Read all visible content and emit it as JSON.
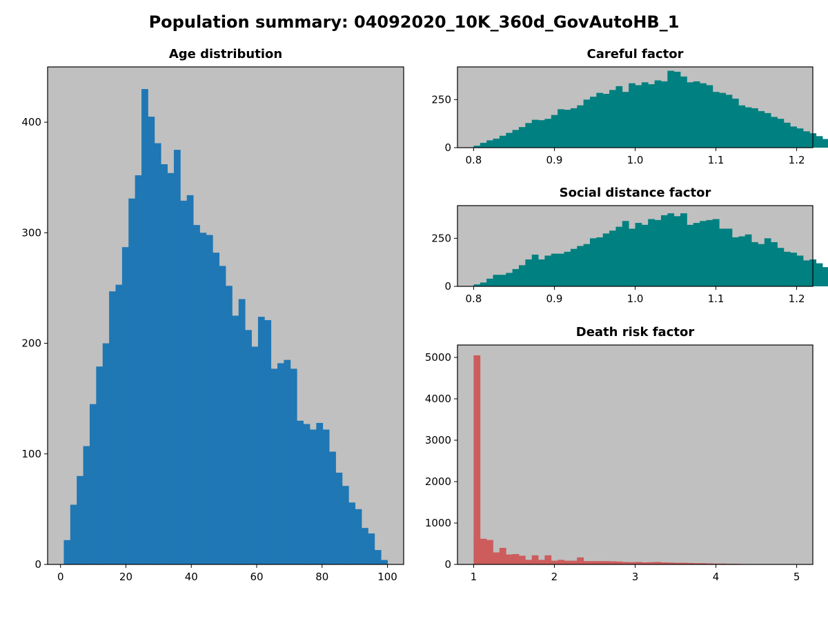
{
  "figure": {
    "title": "Population summary: 04092020_10K_360d_GovAutoHB_1",
    "background": "#ffffff",
    "axes_facecolor": "#c0c0c0"
  },
  "chart_data": [
    {
      "type": "bar",
      "histogram": true,
      "title": "Age distribution",
      "xlabel": "",
      "ylabel": "",
      "color": "#1f77b4",
      "bin_start": 1.0,
      "bin_width": 1.98,
      "values": [
        22,
        54,
        80,
        107,
        145,
        179,
        200,
        247,
        253,
        287,
        331,
        352,
        430,
        405,
        381,
        362,
        354,
        375,
        329,
        334,
        307,
        300,
        298,
        282,
        270,
        252,
        225,
        240,
        212,
        197,
        224,
        221,
        177,
        182,
        185,
        177,
        130,
        127,
        122,
        128,
        122,
        102,
        83,
        71,
        56,
        50,
        33,
        28,
        13,
        4
      ],
      "xlim": [
        -3.95,
        104.95
      ],
      "ylim": [
        0,
        450
      ],
      "xticks": [
        0,
        20,
        40,
        60,
        80,
        100
      ],
      "xtick_labels": [
        "0",
        "20",
        "40",
        "60",
        "80",
        "100"
      ],
      "yticks": [
        0,
        100,
        200,
        300,
        400
      ],
      "ytick_labels": [
        "0",
        "100",
        "200",
        "300",
        "400"
      ],
      "grid": false
    },
    {
      "type": "bar",
      "histogram": true,
      "title": "Careful factor",
      "xlabel": "",
      "ylabel": "",
      "color": "#008080",
      "bin_start": 0.8,
      "bin_width": 0.008,
      "values": [
        10,
        25,
        38,
        47,
        62,
        77,
        92,
        107,
        128,
        145,
        143,
        150,
        170,
        200,
        197,
        205,
        220,
        250,
        265,
        285,
        280,
        300,
        320,
        290,
        335,
        325,
        340,
        330,
        350,
        345,
        400,
        395,
        370,
        340,
        345,
        335,
        325,
        290,
        285,
        275,
        255,
        220,
        210,
        205,
        190,
        180,
        160,
        150,
        130,
        110,
        100,
        85,
        75,
        60,
        45,
        35,
        20,
        10
      ],
      "xlim": [
        0.78,
        1.22
      ],
      "ylim": [
        0,
        420
      ],
      "xticks": [
        0.8,
        0.9,
        1.0,
        1.1,
        1.2
      ],
      "xtick_labels": [
        "0.8",
        "0.9",
        "1.0",
        "1.1",
        "1.2"
      ],
      "yticks": [
        0,
        250
      ],
      "ytick_labels": [
        "0",
        "250"
      ],
      "grid": false
    },
    {
      "type": "bar",
      "histogram": true,
      "title": "Social distance factor",
      "xlabel": "",
      "ylabel": "",
      "color": "#008080",
      "bin_start": 0.8,
      "bin_width": 0.008,
      "values": [
        10,
        20,
        40,
        60,
        60,
        70,
        90,
        110,
        140,
        165,
        140,
        160,
        170,
        170,
        180,
        195,
        210,
        220,
        250,
        255,
        275,
        290,
        310,
        340,
        300,
        330,
        320,
        350,
        345,
        370,
        380,
        365,
        380,
        320,
        330,
        340,
        345,
        350,
        300,
        300,
        255,
        260,
        270,
        230,
        220,
        250,
        230,
        200,
        180,
        175,
        160,
        135,
        140,
        120,
        100,
        70,
        50,
        30
      ],
      "xlim": [
        0.78,
        1.22
      ],
      "ylim": [
        0,
        420
      ],
      "xticks": [
        0.8,
        0.9,
        1.0,
        1.1,
        1.2
      ],
      "xtick_labels": [
        "0.8",
        "0.9",
        "1.0",
        "1.1",
        "1.2"
      ],
      "yticks": [
        0,
        250
      ],
      "ytick_labels": [
        "0",
        "250"
      ],
      "grid": false
    },
    {
      "type": "bar",
      "histogram": true,
      "title": "Death risk factor",
      "xlabel": "",
      "ylabel": "",
      "color": "#cd5c5c",
      "bin_start": 1.0,
      "bin_width": 0.08,
      "values": [
        5050,
        620,
        590,
        290,
        400,
        240,
        250,
        210,
        110,
        220,
        110,
        220,
        90,
        110,
        90,
        90,
        170,
        80,
        80,
        80,
        80,
        75,
        70,
        60,
        55,
        60,
        50,
        55,
        60,
        50,
        45,
        40,
        40,
        35,
        30,
        30,
        25,
        20,
        20,
        15,
        15,
        10,
        8,
        6,
        5,
        5,
        4,
        3,
        3,
        2
      ],
      "xlim": [
        0.8,
        5.2
      ],
      "ylim": [
        0,
        5300
      ],
      "xticks": [
        1,
        2,
        3,
        4,
        5
      ],
      "xtick_labels": [
        "1",
        "2",
        "3",
        "4",
        "5"
      ],
      "yticks": [
        0,
        1000,
        2000,
        3000,
        4000,
        5000
      ],
      "ytick_labels": [
        "0",
        "1000",
        "2000",
        "3000",
        "4000",
        "5000"
      ],
      "grid": false
    }
  ]
}
